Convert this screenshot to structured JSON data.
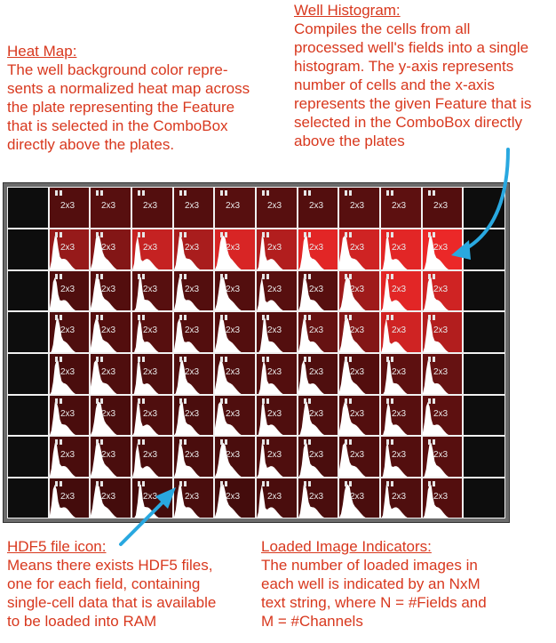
{
  "annotations": {
    "heat_map": {
      "title": "Heat Map:",
      "text": "The well background color repre-\nsents a normalized heat map across\nthe plate representing the Feature\nthat is selected in the ComboBox\ndirectly above the plates."
    },
    "well_histogram": {
      "title": "Well Histogram:",
      "text": "Compiles the cells from all\nprocessed well's fields into a single\nhistogram.  The y-axis represents\nnumber of cells and the x-axis\nrepresents the given Feature that is\nselected in the ComboBox directly\nabove the plates"
    },
    "hdf5_icon": {
      "title": "HDF5 file icon:",
      "text": "Means there exists HDF5 files,\none for each field, containing\nsingle-cell data that is available\nto be loaded into RAM"
    },
    "loaded_images": {
      "title": "Loaded Image Indicators:",
      "text": "The number of loaded images in\neach well is indicated by an NxM\ntext string, where N = #Fields and\nM = #Channels"
    }
  },
  "plate": {
    "well_label": "2x3",
    "rows": 8,
    "cols": 12,
    "inactive_color": "#0d0d0d",
    "histogram_color": "#ffffff",
    "heat": [
      [
        0,
        0.2,
        0.22,
        0.2,
        0.2,
        0.22,
        0.22,
        0.2,
        0.22,
        0.25,
        0.2,
        0
      ],
      [
        0,
        0.55,
        0.45,
        0.8,
        0.65,
        0.9,
        0.7,
        0.95,
        0.85,
        0.95,
        1.0,
        0
      ],
      [
        0,
        0.18,
        0.2,
        0.22,
        0.2,
        0.2,
        0.22,
        0.22,
        0.6,
        0.95,
        0.85,
        0
      ],
      [
        0,
        0.18,
        0.2,
        0.22,
        0.2,
        0.2,
        0.2,
        0.3,
        0.45,
        0.85,
        0.7,
        0
      ],
      [
        0,
        0.15,
        0.18,
        0.18,
        0.18,
        0.18,
        0.2,
        0.18,
        0.2,
        0.25,
        0.3,
        0
      ],
      [
        0,
        0.15,
        0.15,
        0.18,
        0.15,
        0.18,
        0.18,
        0.18,
        0.2,
        0.22,
        0.25,
        0
      ],
      [
        0,
        0.15,
        0.15,
        0.15,
        0.15,
        0.15,
        0.18,
        0.15,
        0.18,
        0.2,
        0.22,
        0
      ],
      [
        0,
        0.12,
        0.12,
        0.12,
        0.15,
        0.12,
        0.15,
        0.15,
        0.15,
        0.18,
        0.2,
        0
      ]
    ],
    "histogram": [
      [
        0,
        0,
        0,
        0,
        0,
        0,
        0,
        0,
        0,
        0,
        0,
        0
      ],
      [
        0,
        1,
        1,
        1,
        1,
        1,
        1,
        1,
        1,
        1,
        1,
        0
      ],
      [
        0,
        1,
        1,
        1,
        1,
        1,
        1,
        1,
        1,
        1,
        1,
        0
      ],
      [
        0,
        1,
        1,
        1,
        1,
        1,
        1,
        1,
        1,
        1,
        1,
        0
      ],
      [
        0,
        1,
        1,
        1,
        1,
        1,
        1,
        1,
        1,
        1,
        1,
        0
      ],
      [
        0,
        1,
        1,
        1,
        1,
        1,
        1,
        1,
        1,
        1,
        1,
        0
      ],
      [
        0,
        1,
        1,
        1,
        1,
        1,
        1,
        1,
        1,
        1,
        1,
        0
      ],
      [
        0,
        1,
        1,
        1,
        1,
        1,
        1,
        1,
        1,
        1,
        1,
        0
      ]
    ],
    "pointer_color": "#29a8e0"
  }
}
